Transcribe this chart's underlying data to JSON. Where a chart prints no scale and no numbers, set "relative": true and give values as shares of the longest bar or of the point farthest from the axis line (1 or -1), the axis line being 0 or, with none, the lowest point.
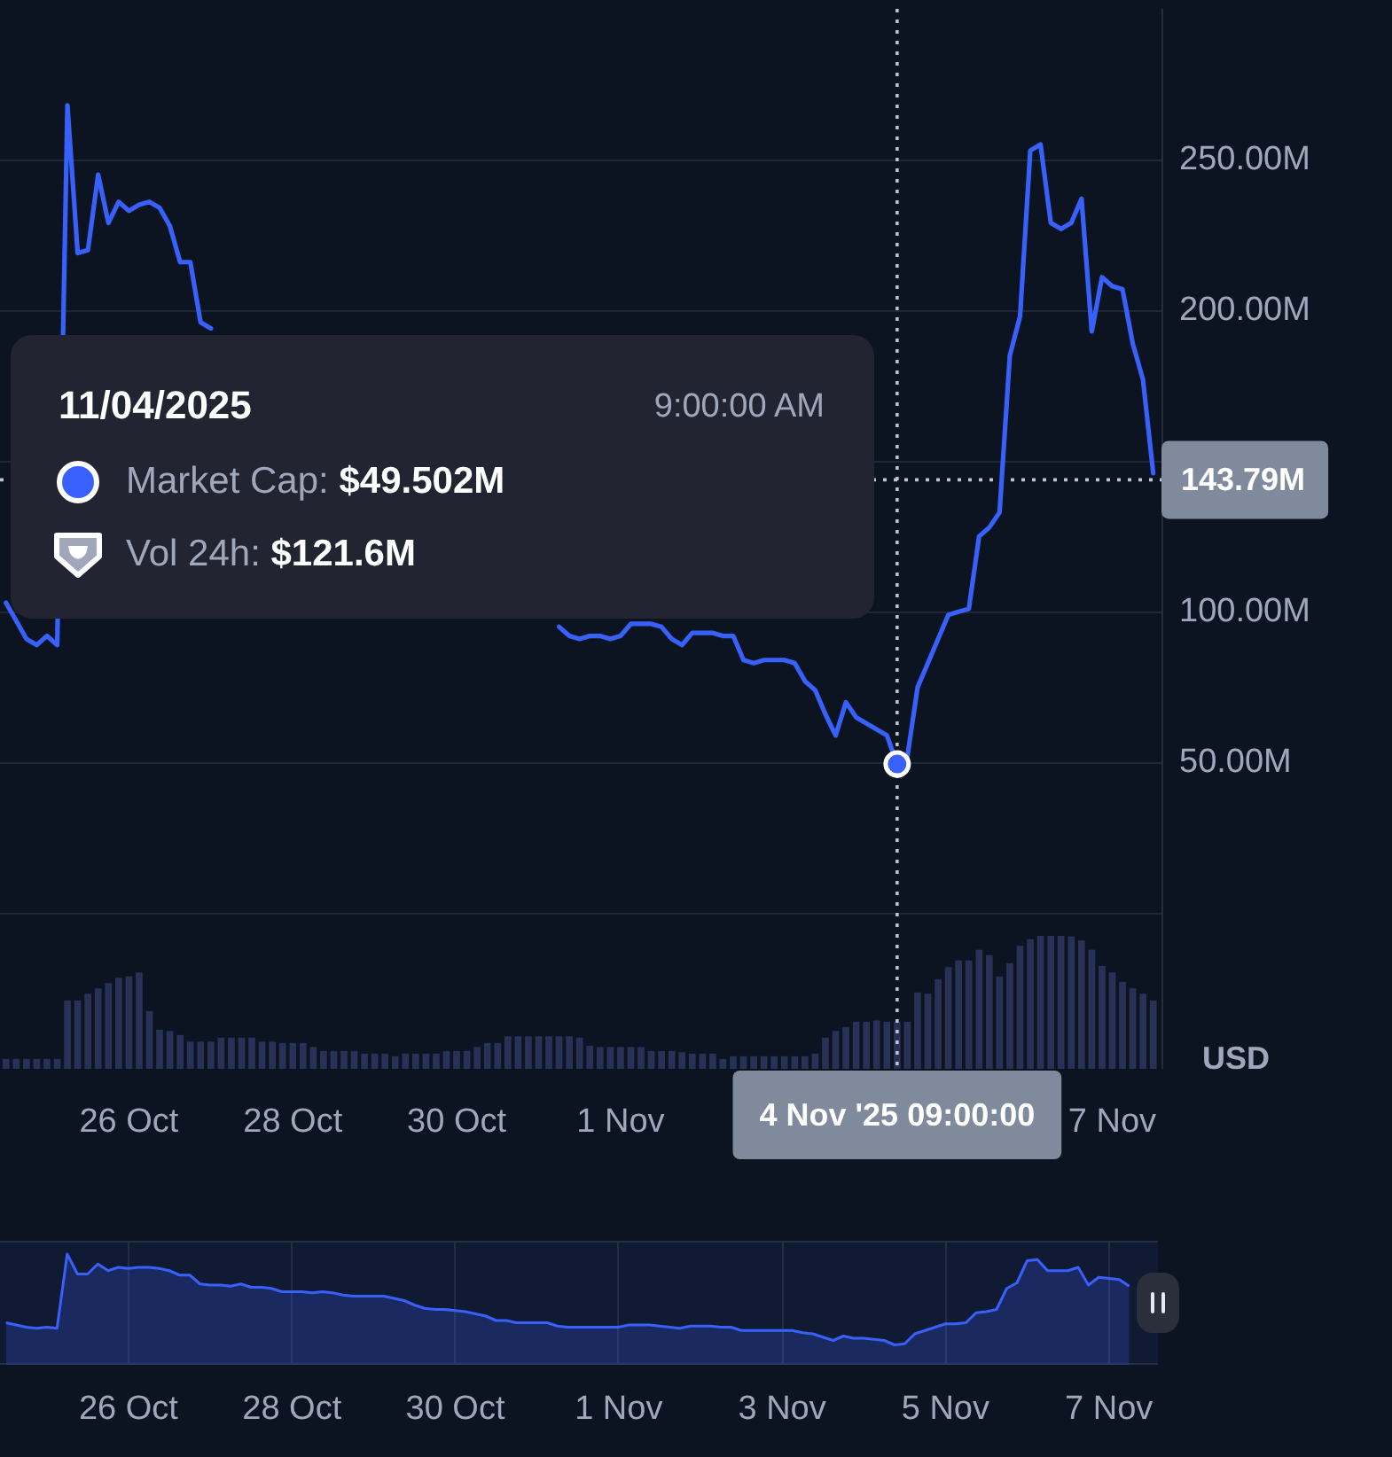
{
  "chart_data": [
    {
      "type": "line",
      "ylabel": "USD",
      "x": [
        "2025-10-24T12:00",
        "2025-10-24T15:00",
        "2025-10-24T18:00",
        "2025-10-24T21:00",
        "2025-10-25T00:00",
        "2025-10-25T03:00",
        "2025-10-25T06:00",
        "2025-10-25T09:00",
        "2025-10-25T12:00",
        "2025-10-25T15:00",
        "2025-10-25T18:00",
        "2025-10-25T21:00",
        "2025-10-26T00:00",
        "2025-10-26T03:00",
        "2025-10-26T06:00",
        "2025-10-26T09:00",
        "2025-10-26T12:00",
        "2025-10-26T15:00",
        "2025-10-26T18:00",
        "2025-10-26T21:00",
        "2025-10-27T00:00",
        "2025-10-27T03:00",
        "2025-10-27T06:00",
        "2025-10-27T09:00",
        "2025-10-27T12:00",
        "2025-10-27T15:00",
        "2025-10-27T18:00",
        "2025-10-27T21:00",
        "2025-10-28T00:00",
        "2025-10-28T03:00",
        "2025-10-28T06:00",
        "2025-10-28T09:00",
        "2025-10-28T12:00",
        "2025-10-28T15:00",
        "2025-10-28T18:00",
        "2025-10-28T21:00",
        "2025-10-29T00:00",
        "2025-10-29T03:00",
        "2025-10-29T06:00",
        "2025-10-29T09:00",
        "2025-10-29T12:00",
        "2025-10-29T15:00",
        "2025-10-29T18:00",
        "2025-10-29T21:00",
        "2025-10-30T00:00",
        "2025-10-30T03:00",
        "2025-10-30T06:00",
        "2025-10-30T09:00",
        "2025-10-30T12:00",
        "2025-10-30T15:00",
        "2025-10-30T18:00",
        "2025-10-30T21:00",
        "2025-10-31T00:00",
        "2025-10-31T03:00",
        "2025-10-31T06:00",
        "2025-10-31T09:00",
        "2025-10-31T12:00",
        "2025-10-31T15:00",
        "2025-10-31T18:00",
        "2025-10-31T21:00",
        "2025-11-01T00:00",
        "2025-11-01T03:00",
        "2025-11-01T06:00",
        "2025-11-01T09:00",
        "2025-11-01T12:00",
        "2025-11-01T15:00",
        "2025-11-01T18:00",
        "2025-11-01T21:00",
        "2025-11-02T00:00",
        "2025-11-02T03:00",
        "2025-11-02T06:00",
        "2025-11-02T09:00",
        "2025-11-02T12:00",
        "2025-11-02T15:00",
        "2025-11-02T18:00",
        "2025-11-02T21:00",
        "2025-11-03T00:00",
        "2025-11-03T03:00",
        "2025-11-03T06:00",
        "2025-11-03T09:00",
        "2025-11-03T12:00",
        "2025-11-03T15:00",
        "2025-11-03T18:00",
        "2025-11-03T21:00",
        "2025-11-04T00:00",
        "2025-11-04T03:00",
        "2025-11-04T06:00",
        "2025-11-04T09:00",
        "2025-11-04T12:00",
        "2025-11-04T15:00",
        "2025-11-04T18:00",
        "2025-11-04T21:00",
        "2025-11-05T00:00",
        "2025-11-05T03:00",
        "2025-11-05T06:00",
        "2025-11-05T09:00",
        "2025-11-05T12:00",
        "2025-11-05T15:00",
        "2025-11-05T18:00",
        "2025-11-05T21:00",
        "2025-11-06T00:00",
        "2025-11-06T03:00",
        "2025-11-06T06:00",
        "2025-11-06T09:00",
        "2025-11-06T12:00",
        "2025-11-06T15:00",
        "2025-11-06T18:00",
        "2025-11-06T21:00",
        "2025-11-07T00:00",
        "2025-11-07T03:00",
        "2025-11-07T06:00",
        "2025-11-07T09:00",
        "2025-11-07T12:00"
      ],
      "xlim": [
        "2025-10-24T10:15",
        "2025-11-07T14:25"
      ],
      "xticks": [
        {
          "value": "2025-10-26",
          "label": "26 Oct"
        },
        {
          "value": "2025-10-28",
          "label": "28 Oct"
        },
        {
          "value": "2025-10-30",
          "label": "30 Oct"
        },
        {
          "value": "2025-11-01",
          "label": "1 Nov"
        },
        {
          "value": "2025-11-07",
          "label": "7 Nov"
        }
      ],
      "ylim": [
        -51,
        300
      ],
      "yticks": [
        {
          "value": 0,
          "label": null
        },
        {
          "value": 50,
          "label": "50.00M"
        },
        {
          "value": 100,
          "label": "100.00M"
        },
        {
          "value": 150,
          "label": null
        },
        {
          "value": 200,
          "label": "200.00M"
        },
        {
          "value": 250,
          "label": "250.00M"
        }
      ],
      "grid": "y",
      "series": [
        {
          "color": "#3861fb",
          "marker": "none",
          "values": [
            103,
            97,
            91,
            89,
            92,
            89,
            268,
            219,
            220,
            245,
            229,
            236,
            233,
            235,
            236,
            234,
            228,
            216,
            216,
            196,
            194,
            null,
            null,
            null,
            null,
            null,
            null,
            null,
            null,
            null,
            null,
            null,
            null,
            null,
            null,
            null,
            null,
            null,
            null,
            null,
            null,
            null,
            null,
            null,
            null,
            null,
            null,
            null,
            null,
            null,
            null,
            null,
            null,
            null,
            95,
            92,
            91,
            92,
            92,
            91,
            92,
            96,
            96,
            96,
            95,
            91,
            89,
            93,
            93,
            93,
            92,
            92,
            84,
            83,
            84,
            84,
            84,
            83,
            77,
            74,
            66,
            59,
            70,
            65,
            63,
            61,
            59,
            49.502,
            52,
            75,
            83,
            91,
            99,
            100,
            101,
            125,
            128,
            133,
            185,
            198,
            253,
            255,
            229,
            227,
            229,
            237,
            193,
            211,
            208,
            207,
            189,
            177,
            146
          ]
        },
        {
          "type": "scatter",
          "color": "#3861fb",
          "marker": "circle",
          "x": [
            "2025-11-04T09:00"
          ],
          "values": [
            49.502
          ]
        }
      ],
      "ref_lines": [
        {
          "axis": "x",
          "value": "2025-11-04T09:00",
          "label": "4 Nov '25 09:00:00",
          "color": "#bfc4ce",
          "line_style": "dotted"
        },
        {
          "axis": "y",
          "value": 143.79,
          "label": "143.79M",
          "color": "#bfc4ce",
          "line_style": "dotted"
        }
      ],
      "annotations": [
        "11/04/2025",
        "9:00:00 AM",
        "Market Cap: $49.502M",
        "Vol 24h: $121.6M"
      ]
    },
    {
      "type": "bar",
      "relative": true,
      "tick_labels": false,
      "color": "#283256",
      "x": [
        "2025-10-24T12:00",
        "2025-10-24T15:00",
        "2025-10-24T18:00",
        "2025-10-24T21:00",
        "2025-10-25T00:00",
        "2025-10-25T03:00",
        "2025-10-25T06:00",
        "2025-10-25T09:00",
        "2025-10-25T12:00",
        "2025-10-25T15:00",
        "2025-10-25T18:00",
        "2025-10-25T21:00",
        "2025-10-26T00:00",
        "2025-10-26T03:00",
        "2025-10-26T06:00",
        "2025-10-26T09:00",
        "2025-10-26T12:00",
        "2025-10-26T15:00",
        "2025-10-26T18:00",
        "2025-10-26T21:00",
        "2025-10-27T00:00",
        "2025-10-27T03:00",
        "2025-10-27T06:00",
        "2025-10-27T09:00",
        "2025-10-27T12:00",
        "2025-10-27T15:00",
        "2025-10-27T18:00",
        "2025-10-27T21:00",
        "2025-10-28T00:00",
        "2025-10-28T03:00",
        "2025-10-28T06:00",
        "2025-10-28T09:00",
        "2025-10-28T12:00",
        "2025-10-28T15:00",
        "2025-10-28T18:00",
        "2025-10-28T21:00",
        "2025-10-29T00:00",
        "2025-10-29T03:00",
        "2025-10-29T06:00",
        "2025-10-29T09:00",
        "2025-10-29T12:00",
        "2025-10-29T15:00",
        "2025-10-29T18:00",
        "2025-10-29T21:00",
        "2025-10-30T00:00",
        "2025-10-30T03:00",
        "2025-10-30T06:00",
        "2025-10-30T09:00",
        "2025-10-30T12:00",
        "2025-10-30T15:00",
        "2025-10-30T18:00",
        "2025-10-30T21:00",
        "2025-10-31T00:00",
        "2025-10-31T03:00",
        "2025-10-31T06:00",
        "2025-10-31T09:00",
        "2025-10-31T12:00",
        "2025-10-31T15:00",
        "2025-10-31T18:00",
        "2025-10-31T21:00",
        "2025-11-01T00:00",
        "2025-11-01T03:00",
        "2025-11-01T06:00",
        "2025-11-01T09:00",
        "2025-11-01T12:00",
        "2025-11-01T15:00",
        "2025-11-01T18:00",
        "2025-11-01T21:00",
        "2025-11-02T00:00",
        "2025-11-02T03:00",
        "2025-11-02T06:00",
        "2025-11-02T09:00",
        "2025-11-02T12:00",
        "2025-11-02T15:00",
        "2025-11-02T18:00",
        "2025-11-02T21:00",
        "2025-11-03T00:00",
        "2025-11-03T03:00",
        "2025-11-03T06:00",
        "2025-11-03T09:00",
        "2025-11-03T12:00",
        "2025-11-03T15:00",
        "2025-11-03T18:00",
        "2025-11-03T21:00",
        "2025-11-04T00:00",
        "2025-11-04T03:00",
        "2025-11-04T06:00",
        "2025-11-04T09:00",
        "2025-11-04T12:00",
        "2025-11-04T15:00",
        "2025-11-04T18:00",
        "2025-11-04T21:00",
        "2025-11-05T00:00",
        "2025-11-05T03:00",
        "2025-11-05T06:00",
        "2025-11-05T09:00",
        "2025-11-05T12:00",
        "2025-11-05T15:00",
        "2025-11-05T18:00",
        "2025-11-05T21:00",
        "2025-11-06T00:00",
        "2025-11-06T03:00",
        "2025-11-06T06:00",
        "2025-11-06T09:00",
        "2025-11-06T12:00",
        "2025-11-06T15:00",
        "2025-11-06T18:00",
        "2025-11-06T21:00",
        "2025-11-07T00:00",
        "2025-11-07T03:00",
        "2025-11-07T06:00",
        "2025-11-07T09:00",
        "2025-11-07T12:00"
      ],
      "xlim": [
        "2025-10-24T10:15",
        "2025-11-07T14:25"
      ],
      "values": [
        0.07,
        0.07,
        0.07,
        0.07,
        0.07,
        0.07,
        0.51,
        0.51,
        0.56,
        0.6,
        0.64,
        0.68,
        0.69,
        0.72,
        0.43,
        0.29,
        0.28,
        0.25,
        0.2,
        0.2,
        0.2,
        0.23,
        0.23,
        0.23,
        0.23,
        0.2,
        0.2,
        0.19,
        0.19,
        0.19,
        0.16,
        0.13,
        0.13,
        0.13,
        0.13,
        0.11,
        0.11,
        0.11,
        0.09,
        0.11,
        0.11,
        0.11,
        0.11,
        0.13,
        0.13,
        0.13,
        0.16,
        0.19,
        0.19,
        0.24,
        0.24,
        0.24,
        0.24,
        0.24,
        0.24,
        0.24,
        0.23,
        0.17,
        0.16,
        0.16,
        0.16,
        0.16,
        0.16,
        0.13,
        0.13,
        0.13,
        0.12,
        0.11,
        0.11,
        0.11,
        0.07,
        0.09,
        0.09,
        0.09,
        0.09,
        0.09,
        0.09,
        0.09,
        0.09,
        0.11,
        0.23,
        0.28,
        0.31,
        0.35,
        0.35,
        0.36,
        0.35,
        0.35,
        0.35,
        0.57,
        0.56,
        0.67,
        0.76,
        0.81,
        0.81,
        0.89,
        0.85,
        0.69,
        0.79,
        0.92,
        0.97,
        1,
        1,
        1,
        0.99,
        0.96,
        0.89,
        0.77,
        0.72,
        0.65,
        0.6,
        0.56,
        0.51
      ]
    },
    {
      "type": "area",
      "relative": true,
      "color": "#3861fb",
      "grid": "x",
      "x": [
        "2025-10-24T12:00",
        "2025-10-24T15:00",
        "2025-10-24T18:00",
        "2025-10-24T21:00",
        "2025-10-25T00:00",
        "2025-10-25T03:00",
        "2025-10-25T06:00",
        "2025-10-25T09:00",
        "2025-10-25T12:00",
        "2025-10-25T15:00",
        "2025-10-25T18:00",
        "2025-10-25T21:00",
        "2025-10-26T00:00",
        "2025-10-26T03:00",
        "2025-10-26T06:00",
        "2025-10-26T09:00",
        "2025-10-26T12:00",
        "2025-10-26T15:00",
        "2025-10-26T18:00",
        "2025-10-26T21:00",
        "2025-10-27T00:00",
        "2025-10-27T03:00",
        "2025-10-27T06:00",
        "2025-10-27T09:00",
        "2025-10-27T12:00",
        "2025-10-27T15:00",
        "2025-10-27T18:00",
        "2025-10-27T21:00",
        "2025-10-28T00:00",
        "2025-10-28T03:00",
        "2025-10-28T06:00",
        "2025-10-28T09:00",
        "2025-10-28T12:00",
        "2025-10-28T15:00",
        "2025-10-28T18:00",
        "2025-10-28T21:00",
        "2025-10-29T00:00",
        "2025-10-29T03:00",
        "2025-10-29T06:00",
        "2025-10-29T09:00",
        "2025-10-29T12:00",
        "2025-10-29T15:00",
        "2025-10-29T18:00",
        "2025-10-29T21:00",
        "2025-10-30T00:00",
        "2025-10-30T03:00",
        "2025-10-30T06:00",
        "2025-10-30T09:00",
        "2025-10-30T12:00",
        "2025-10-30T15:00",
        "2025-10-30T18:00",
        "2025-10-30T21:00",
        "2025-10-31T00:00",
        "2025-10-31T03:00",
        "2025-10-31T06:00",
        "2025-10-31T09:00",
        "2025-10-31T12:00",
        "2025-10-31T15:00",
        "2025-10-31T18:00",
        "2025-10-31T21:00",
        "2025-11-01T00:00",
        "2025-11-01T03:00",
        "2025-11-01T06:00",
        "2025-11-01T09:00",
        "2025-11-01T12:00",
        "2025-11-01T15:00",
        "2025-11-01T18:00",
        "2025-11-01T21:00",
        "2025-11-02T00:00",
        "2025-11-02T03:00",
        "2025-11-02T06:00",
        "2025-11-02T09:00",
        "2025-11-02T12:00",
        "2025-11-02T15:00",
        "2025-11-02T18:00",
        "2025-11-02T21:00",
        "2025-11-03T00:00",
        "2025-11-03T03:00",
        "2025-11-03T06:00",
        "2025-11-03T09:00",
        "2025-11-03T12:00",
        "2025-11-03T15:00",
        "2025-11-03T18:00",
        "2025-11-03T21:00",
        "2025-11-04T00:00",
        "2025-11-04T03:00",
        "2025-11-04T06:00",
        "2025-11-04T09:00",
        "2025-11-04T12:00",
        "2025-11-04T15:00",
        "2025-11-04T18:00",
        "2025-11-04T21:00",
        "2025-11-05T00:00",
        "2025-11-05T03:00",
        "2025-11-05T06:00",
        "2025-11-05T09:00",
        "2025-11-05T12:00",
        "2025-11-05T15:00",
        "2025-11-05T18:00",
        "2025-11-05T21:00",
        "2025-11-06T00:00",
        "2025-11-06T03:00",
        "2025-11-06T06:00",
        "2025-11-06T09:00",
        "2025-11-06T12:00",
        "2025-11-06T15:00",
        "2025-11-06T18:00",
        "2025-11-06T21:00",
        "2025-11-07T00:00",
        "2025-11-07T03:00",
        "2025-11-07T06:00"
      ],
      "xlim": [
        "2025-10-24T10:15",
        "2025-11-07T14:25"
      ],
      "xticks": [
        {
          "value": "2025-10-26",
          "label": "26 Oct"
        },
        {
          "value": "2025-10-28",
          "label": "28 Oct"
        },
        {
          "value": "2025-10-30",
          "label": "30 Oct"
        },
        {
          "value": "2025-11-01",
          "label": "1 Nov"
        },
        {
          "value": "2025-11-03",
          "label": "3 Nov"
        },
        {
          "value": "2025-11-05",
          "label": "5 Nov"
        },
        {
          "value": "2025-11-07",
          "label": "7 Nov"
        }
      ],
      "values": [
        0.38,
        0.36,
        0.34,
        0.33,
        0.34,
        0.33,
        1,
        0.82,
        0.82,
        0.91,
        0.85,
        0.88,
        0.87,
        0.88,
        0.88,
        0.87,
        0.85,
        0.81,
        0.81,
        0.73,
        0.72,
        0.72,
        0.71,
        0.73,
        0.7,
        0.7,
        0.69,
        0.66,
        0.66,
        0.66,
        0.65,
        0.66,
        0.65,
        0.63,
        0.62,
        0.62,
        0.62,
        0.62,
        0.6,
        0.58,
        0.54,
        0.51,
        0.5,
        0.5,
        0.49,
        0.48,
        0.46,
        0.44,
        0.4,
        0.4,
        0.38,
        0.38,
        0.38,
        0.38,
        0.35,
        0.34,
        0.34,
        0.34,
        0.34,
        0.34,
        0.34,
        0.36,
        0.36,
        0.36,
        0.35,
        0.34,
        0.33,
        0.35,
        0.35,
        0.35,
        0.34,
        0.34,
        0.31,
        0.31,
        0.31,
        0.31,
        0.31,
        0.31,
        0.29,
        0.28,
        0.25,
        0.22,
        0.26,
        0.24,
        0.24,
        0.23,
        0.22,
        0.18,
        0.19,
        0.28,
        0.31,
        0.34,
        0.37,
        0.37,
        0.38,
        0.47,
        0.48,
        0.5,
        0.69,
        0.74,
        0.94,
        0.95,
        0.85,
        0.85,
        0.85,
        0.88,
        0.72,
        0.79,
        0.78,
        0.77,
        0.71
      ]
    }
  ]
}
